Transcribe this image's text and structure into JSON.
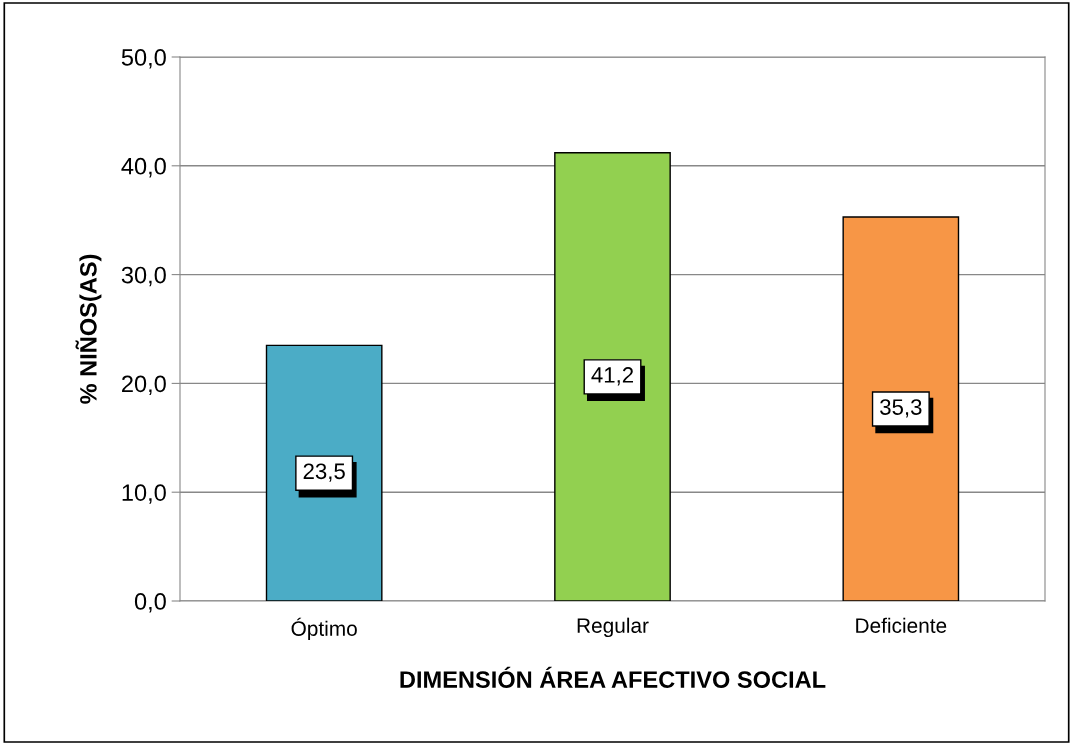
{
  "chart_data": {
    "type": "bar",
    "xlabel": "DIMENSIÓN ÁREA AFECTIVO SOCIAL",
    "ylabel": "% NIÑOS(AS)",
    "categories": [
      "Óptimo",
      "Regular",
      "Deficiente"
    ],
    "values": [
      23.5,
      41.2,
      35.3
    ],
    "value_labels": [
      "23,5",
      "41,2",
      "35,3"
    ],
    "colors": [
      "#4bacc6",
      "#92d050",
      "#f79646"
    ],
    "ylim": [
      0,
      50
    ],
    "yticks": [
      {
        "value": 0,
        "label": "0,0"
      },
      {
        "value": 10,
        "label": "10,0"
      },
      {
        "value": 20,
        "label": "20,0"
      },
      {
        "value": 30,
        "label": "30,0"
      },
      {
        "value": 40,
        "label": "40,0"
      },
      {
        "value": 50,
        "label": "50,0"
      }
    ],
    "grid": "y",
    "legend": false
  }
}
